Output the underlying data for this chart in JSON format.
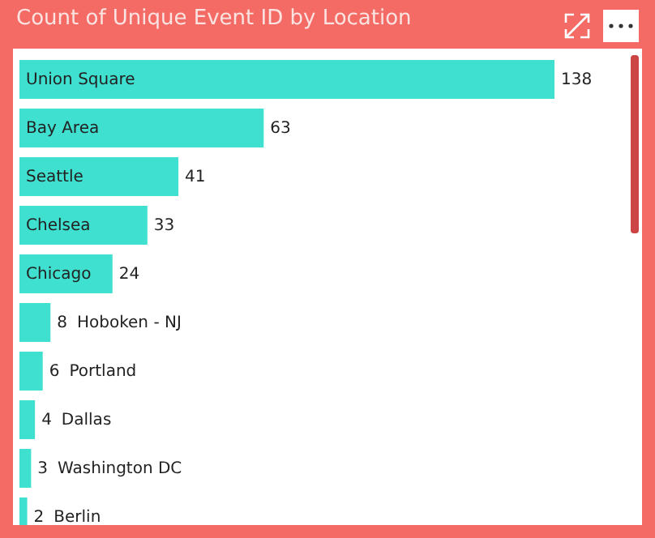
{
  "chart_data": {
    "type": "bar",
    "title": "Count of Unique Event ID by Location",
    "orientation": "horizontal",
    "data_labels": true,
    "color": "#40e0d0",
    "categories": [
      "Union Square",
      "Bay Area",
      "Seattle",
      "Chelsea",
      "Chicago",
      "Hoboken - NJ",
      "Portland",
      "Dallas",
      "Washington DC",
      "Berlin"
    ],
    "values": [
      138,
      63,
      41,
      33,
      24,
      8,
      6,
      4,
      3,
      2
    ]
  }
}
